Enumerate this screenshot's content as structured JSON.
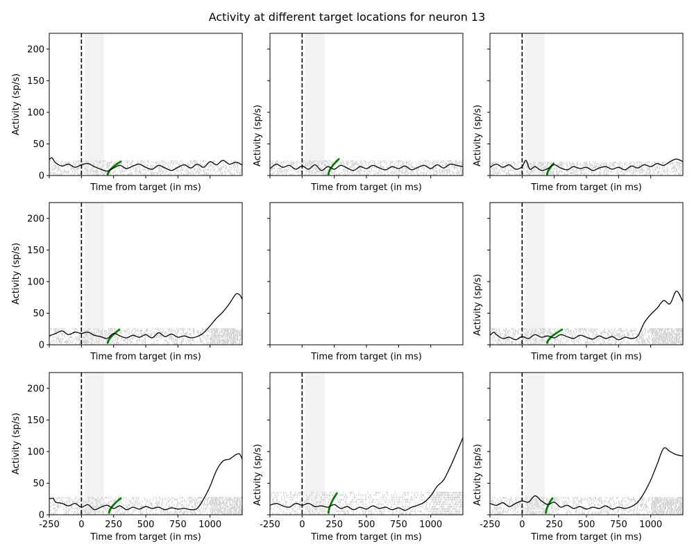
{
  "chart_data": {
    "type": "line",
    "title": "Activity at different target locations for neuron 13",
    "xlabel": "Time from target (in ms)",
    "ylabel": "Activity (sp/s)",
    "xlim": [
      -250,
      1250
    ],
    "ylim": [
      0,
      225
    ],
    "xticks": [
      -250,
      0,
      250,
      500,
      750,
      1000
    ],
    "yticks": [
      0,
      50,
      100,
      150,
      200
    ],
    "shaded_interval": [
      25,
      175
    ],
    "event_line_x": 0,
    "colors": {
      "psth": "#000000",
      "raster": "#cccccc",
      "saccade": "#008000",
      "shade": "#f2f2f2"
    },
    "panels": [
      {
        "id": "p11",
        "has_data": true,
        "baseline": 14,
        "late_rise": 0,
        "raster_top": 22,
        "saccade_t": [
          205,
          305
        ],
        "saccade_y": [
          2,
          22
        ],
        "psth": [
          [
            -250,
            25
          ],
          [
            -230,
            28
          ],
          [
            -200,
            20
          ],
          [
            -150,
            15
          ],
          [
            -100,
            18
          ],
          [
            -50,
            13
          ],
          [
            0,
            17
          ],
          [
            50,
            19
          ],
          [
            100,
            14
          ],
          [
            150,
            10
          ],
          [
            200,
            7
          ],
          [
            250,
            12
          ],
          [
            300,
            16
          ],
          [
            350,
            11
          ],
          [
            400,
            15
          ],
          [
            450,
            18
          ],
          [
            500,
            13
          ],
          [
            550,
            10
          ],
          [
            600,
            16
          ],
          [
            650,
            12
          ],
          [
            700,
            8
          ],
          [
            750,
            13
          ],
          [
            800,
            17
          ],
          [
            850,
            12
          ],
          [
            900,
            18
          ],
          [
            950,
            13
          ],
          [
            1000,
            22
          ],
          [
            1050,
            17
          ],
          [
            1100,
            24
          ],
          [
            1150,
            18
          ],
          [
            1200,
            21
          ],
          [
            1250,
            17
          ]
        ]
      },
      {
        "id": "p12",
        "has_data": true,
        "baseline": 12,
        "late_rise": 0,
        "raster_top": 22,
        "saccade_t": [
          205,
          285
        ],
        "saccade_y": [
          2,
          26
        ],
        "psth": [
          [
            -250,
            11
          ],
          [
            -200,
            18
          ],
          [
            -150,
            13
          ],
          [
            -100,
            16
          ],
          [
            -50,
            10
          ],
          [
            0,
            15
          ],
          [
            50,
            10
          ],
          [
            100,
            17
          ],
          [
            150,
            8
          ],
          [
            200,
            14
          ],
          [
            250,
            10
          ],
          [
            300,
            16
          ],
          [
            350,
            12
          ],
          [
            400,
            8
          ],
          [
            450,
            14
          ],
          [
            500,
            11
          ],
          [
            550,
            16
          ],
          [
            600,
            12
          ],
          [
            650,
            9
          ],
          [
            700,
            14
          ],
          [
            750,
            11
          ],
          [
            800,
            15
          ],
          [
            850,
            9
          ],
          [
            900,
            13
          ],
          [
            950,
            16
          ],
          [
            1000,
            11
          ],
          [
            1050,
            17
          ],
          [
            1100,
            12
          ],
          [
            1150,
            18
          ],
          [
            1200,
            16
          ],
          [
            1250,
            14
          ]
        ]
      },
      {
        "id": "p13",
        "has_data": true,
        "baseline": 14,
        "late_rise": 0,
        "raster_top": 20,
        "saccade_t": [
          195,
          245
        ],
        "saccade_y": [
          2,
          19
        ],
        "psth": [
          [
            -250,
            13
          ],
          [
            -200,
            18
          ],
          [
            -150,
            13
          ],
          [
            -100,
            17
          ],
          [
            -50,
            10
          ],
          [
            0,
            14
          ],
          [
            30,
            24
          ],
          [
            60,
            10
          ],
          [
            100,
            14
          ],
          [
            150,
            8
          ],
          [
            200,
            11
          ],
          [
            250,
            17
          ],
          [
            300,
            12
          ],
          [
            350,
            9
          ],
          [
            400,
            14
          ],
          [
            450,
            11
          ],
          [
            500,
            13
          ],
          [
            550,
            8
          ],
          [
            600,
            12
          ],
          [
            650,
            14
          ],
          [
            700,
            10
          ],
          [
            750,
            13
          ],
          [
            800,
            9
          ],
          [
            850,
            15
          ],
          [
            900,
            12
          ],
          [
            950,
            17
          ],
          [
            1000,
            14
          ],
          [
            1050,
            19
          ],
          [
            1100,
            16
          ],
          [
            1150,
            22
          ],
          [
            1200,
            26
          ],
          [
            1250,
            22
          ]
        ]
      },
      {
        "id": "p21",
        "has_data": true,
        "baseline": 15,
        "late_rise": 1,
        "raster_top": 24,
        "saccade_t": [
          205,
          295
        ],
        "saccade_y": [
          3,
          24
        ],
        "psth": [
          [
            -250,
            14
          ],
          [
            -200,
            18
          ],
          [
            -150,
            22
          ],
          [
            -100,
            16
          ],
          [
            -50,
            20
          ],
          [
            0,
            18
          ],
          [
            50,
            20
          ],
          [
            100,
            15
          ],
          [
            150,
            13
          ],
          [
            200,
            10
          ],
          [
            250,
            18
          ],
          [
            300,
            14
          ],
          [
            350,
            11
          ],
          [
            400,
            15
          ],
          [
            450,
            12
          ],
          [
            500,
            16
          ],
          [
            550,
            11
          ],
          [
            600,
            19
          ],
          [
            650,
            13
          ],
          [
            700,
            17
          ],
          [
            750,
            12
          ],
          [
            800,
            14
          ],
          [
            850,
            11
          ],
          [
            900,
            13
          ],
          [
            950,
            19
          ],
          [
            1000,
            30
          ],
          [
            1050,
            42
          ],
          [
            1100,
            52
          ],
          [
            1150,
            65
          ],
          [
            1200,
            80
          ],
          [
            1230,
            79
          ],
          [
            1250,
            72
          ]
        ]
      },
      {
        "id": "p22",
        "has_data": false
      },
      {
        "id": "p23",
        "has_data": true,
        "baseline": 12,
        "late_rise": 1,
        "raster_top": 24,
        "saccade_t": [
          195,
          310
        ],
        "saccade_y": [
          3,
          24
        ],
        "psth": [
          [
            -250,
            15
          ],
          [
            -220,
            20
          ],
          [
            -200,
            16
          ],
          [
            -150,
            10
          ],
          [
            -100,
            12
          ],
          [
            -50,
            8
          ],
          [
            0,
            13
          ],
          [
            50,
            10
          ],
          [
            100,
            16
          ],
          [
            150,
            12
          ],
          [
            200,
            14
          ],
          [
            250,
            11
          ],
          [
            300,
            16
          ],
          [
            350,
            13
          ],
          [
            400,
            10
          ],
          [
            450,
            15
          ],
          [
            500,
            12
          ],
          [
            550,
            9
          ],
          [
            600,
            14
          ],
          [
            650,
            10
          ],
          [
            700,
            13
          ],
          [
            750,
            8
          ],
          [
            800,
            12
          ],
          [
            850,
            10
          ],
          [
            900,
            14
          ],
          [
            950,
            35
          ],
          [
            1000,
            48
          ],
          [
            1050,
            58
          ],
          [
            1100,
            70
          ],
          [
            1150,
            65
          ],
          [
            1200,
            85
          ],
          [
            1250,
            68
          ]
        ]
      },
      {
        "id": "p31",
        "has_data": true,
        "baseline": 15,
        "late_rise": 1,
        "raster_top": 26,
        "saccade_t": [
          215,
          305
        ],
        "saccade_y": [
          3,
          26
        ],
        "psth": [
          [
            -250,
            25
          ],
          [
            -220,
            26
          ],
          [
            -200,
            20
          ],
          [
            -150,
            18
          ],
          [
            -100,
            14
          ],
          [
            -50,
            18
          ],
          [
            0,
            12
          ],
          [
            50,
            16
          ],
          [
            100,
            8
          ],
          [
            150,
            12
          ],
          [
            200,
            15
          ],
          [
            250,
            10
          ],
          [
            300,
            14
          ],
          [
            350,
            8
          ],
          [
            400,
            12
          ],
          [
            450,
            9
          ],
          [
            500,
            13
          ],
          [
            550,
            10
          ],
          [
            600,
            12
          ],
          [
            650,
            8
          ],
          [
            700,
            11
          ],
          [
            750,
            9
          ],
          [
            800,
            10
          ],
          [
            850,
            8
          ],
          [
            900,
            10
          ],
          [
            950,
            25
          ],
          [
            1000,
            45
          ],
          [
            1050,
            70
          ],
          [
            1100,
            85
          ],
          [
            1150,
            88
          ],
          [
            1200,
            95
          ],
          [
            1230,
            96
          ],
          [
            1250,
            88
          ]
        ]
      },
      {
        "id": "p32",
        "has_data": true,
        "baseline": 14,
        "late_rise": 1,
        "raster_top": 34,
        "saccade_t": [
          205,
          270
        ],
        "saccade_y": [
          3,
          34
        ],
        "psth": [
          [
            -250,
            15
          ],
          [
            -200,
            18
          ],
          [
            -150,
            14
          ],
          [
            -100,
            12
          ],
          [
            -50,
            18
          ],
          [
            0,
            15
          ],
          [
            50,
            18
          ],
          [
            100,
            13
          ],
          [
            150,
            14
          ],
          [
            200,
            12
          ],
          [
            250,
            16
          ],
          [
            300,
            10
          ],
          [
            350,
            13
          ],
          [
            400,
            8
          ],
          [
            450,
            12
          ],
          [
            500,
            9
          ],
          [
            550,
            14
          ],
          [
            600,
            10
          ],
          [
            650,
            12
          ],
          [
            700,
            8
          ],
          [
            750,
            11
          ],
          [
            800,
            7
          ],
          [
            850,
            12
          ],
          [
            900,
            15
          ],
          [
            950,
            20
          ],
          [
            1000,
            30
          ],
          [
            1050,
            45
          ],
          [
            1100,
            55
          ],
          [
            1150,
            75
          ],
          [
            1200,
            98
          ],
          [
            1250,
            122
          ]
        ]
      },
      {
        "id": "p33",
        "has_data": true,
        "baseline": 15,
        "late_rise": 1,
        "raster_top": 26,
        "saccade_t": [
          185,
          235
        ],
        "saccade_y": [
          3,
          26
        ],
        "psth": [
          [
            -250,
            18
          ],
          [
            -200,
            15
          ],
          [
            -150,
            19
          ],
          [
            -100,
            13
          ],
          [
            -50,
            18
          ],
          [
            0,
            22
          ],
          [
            50,
            20
          ],
          [
            100,
            30
          ],
          [
            150,
            22
          ],
          [
            200,
            16
          ],
          [
            250,
            20
          ],
          [
            300,
            12
          ],
          [
            350,
            15
          ],
          [
            400,
            10
          ],
          [
            450,
            13
          ],
          [
            500,
            9
          ],
          [
            550,
            12
          ],
          [
            600,
            10
          ],
          [
            650,
            14
          ],
          [
            700,
            9
          ],
          [
            750,
            12
          ],
          [
            800,
            10
          ],
          [
            850,
            13
          ],
          [
            900,
            20
          ],
          [
            950,
            35
          ],
          [
            1000,
            55
          ],
          [
            1050,
            80
          ],
          [
            1100,
            105
          ],
          [
            1150,
            100
          ],
          [
            1200,
            95
          ],
          [
            1250,
            93
          ]
        ]
      }
    ]
  }
}
